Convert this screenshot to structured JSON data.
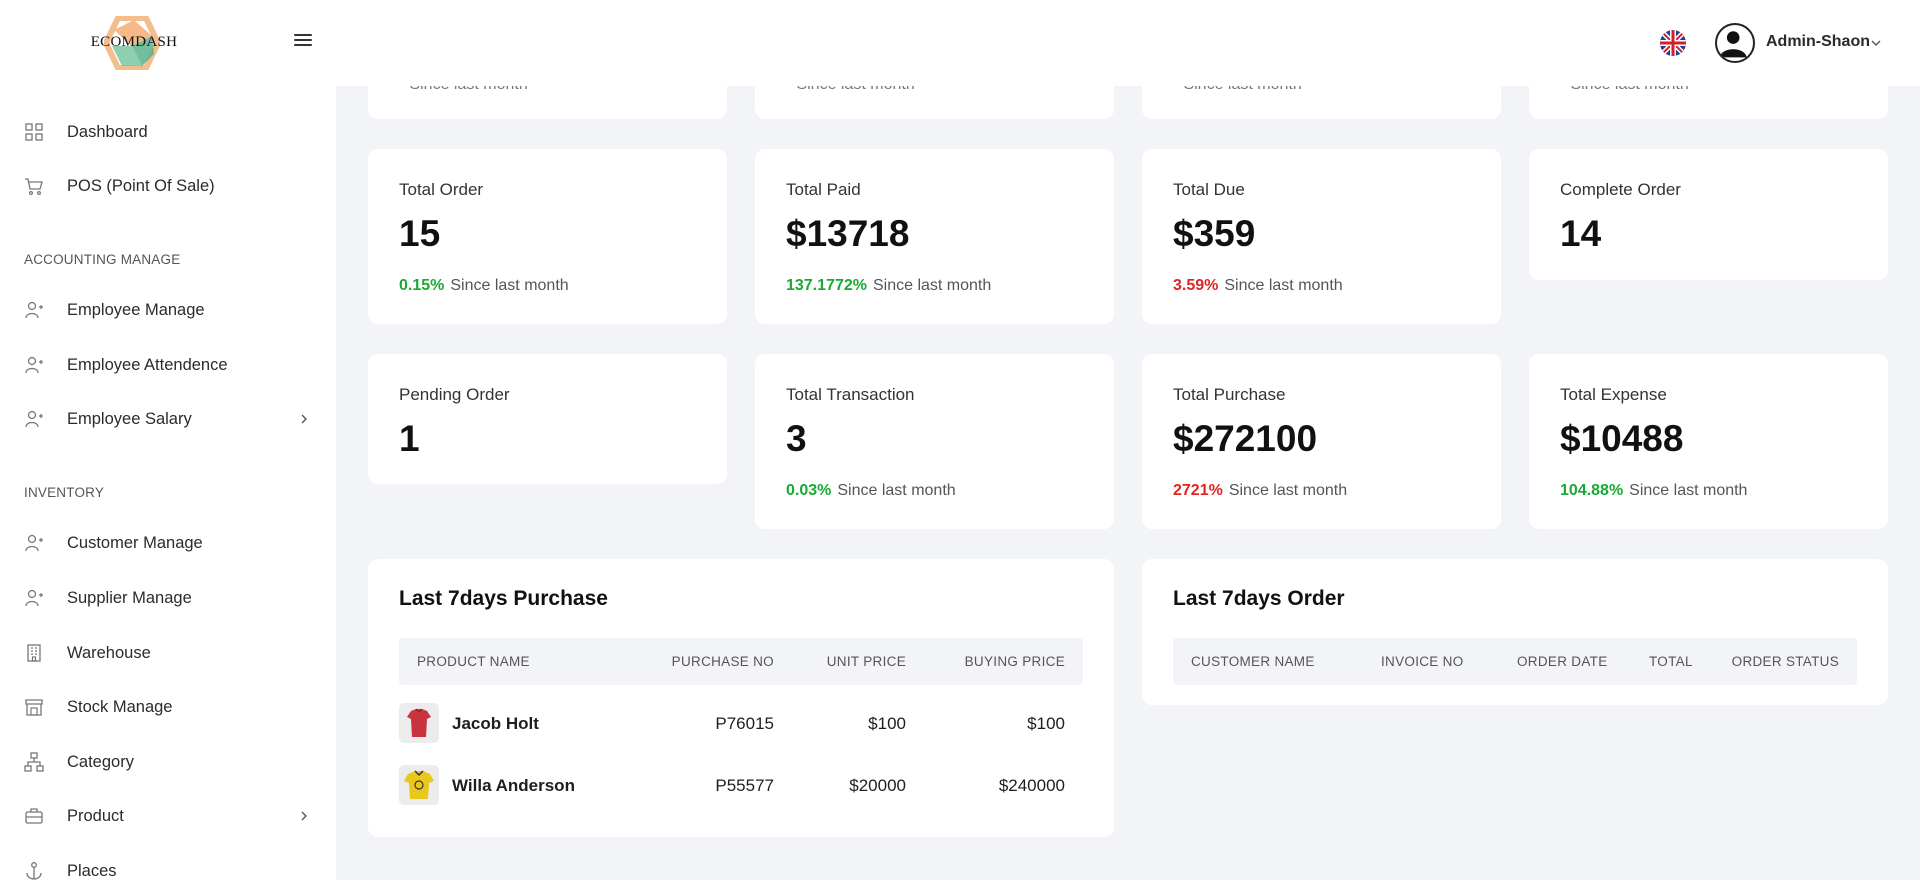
{
  "header": {
    "logo_text": "ECOMDASH",
    "user_name": "Admin-Shaon"
  },
  "sidebar": {
    "items": [
      {
        "label": "Dashboard",
        "icon": "grid-icon"
      },
      {
        "label": "POS (Point Of Sale)",
        "icon": "cart-icon"
      },
      {
        "label": "Employee Manage",
        "icon": "user-plus-icon"
      },
      {
        "label": "Employee Attendence",
        "icon": "user-plus-icon"
      },
      {
        "label": "Employee Salary",
        "icon": "user-plus-icon"
      },
      {
        "label": "Customer Manage",
        "icon": "user-plus-icon"
      },
      {
        "label": "Supplier Manage",
        "icon": "user-plus-icon"
      },
      {
        "label": "Warehouse",
        "icon": "building-icon"
      },
      {
        "label": "Stock Manage",
        "icon": "store-icon"
      },
      {
        "label": "Category",
        "icon": "hierarchy-icon"
      },
      {
        "label": "Product",
        "icon": "briefcase-icon"
      },
      {
        "label": "Places",
        "icon": "anchor-icon"
      }
    ],
    "sections": {
      "accounting": "ACCOUNTING MANAGE",
      "inventory": "INVENTORY"
    }
  },
  "top_strip": {
    "text": "Since last month"
  },
  "stats": [
    {
      "title": "Total Order",
      "value": "15",
      "pct": "0.15%",
      "trend": "up",
      "note": "Since last month"
    },
    {
      "title": "Total Paid",
      "value": "$13718",
      "pct": "137.1772%",
      "trend": "up",
      "note": "Since last month"
    },
    {
      "title": "Total Due",
      "value": "$359",
      "pct": "3.59%",
      "trend": "down",
      "note": "Since last month"
    },
    {
      "title": "Complete Order",
      "value": "14"
    },
    {
      "title": "Pending Order",
      "value": "1"
    },
    {
      "title": "Total Transaction",
      "value": "3",
      "pct": "0.03%",
      "trend": "up",
      "note": "Since last month"
    },
    {
      "title": "Total Purchase",
      "value": "$272100",
      "pct": "2721%",
      "trend": "down",
      "note": "Since last month"
    },
    {
      "title": "Total Expense",
      "value": "$10488",
      "pct": "104.88%",
      "trend": "up",
      "note": "Since last month"
    }
  ],
  "purchase_panel": {
    "title": "Last 7days Purchase",
    "columns": [
      "PRODUCT NAME",
      "PURCHASE NO",
      "UNIT PRICE",
      "BUYING PRICE"
    ],
    "rows": [
      {
        "name": "Jacob Holt",
        "purchase_no": "P76015",
        "unit_price": "$100",
        "buying_price": "$100",
        "image_color": "#c8333d"
      },
      {
        "name": "Willa Anderson",
        "purchase_no": "P55577",
        "unit_price": "$20000",
        "buying_price": "$240000",
        "image_color": "#e9c71c"
      }
    ]
  },
  "order_panel": {
    "title": "Last 7days Order",
    "columns": [
      "CUSTOMER NAME",
      "INVOICE NO",
      "ORDER DATE",
      "TOTAL",
      "ORDER STATUS"
    ]
  },
  "colors": {
    "accent_green": "#1aaa34",
    "accent_red": "#e02424",
    "background": "#f3f4f7"
  }
}
